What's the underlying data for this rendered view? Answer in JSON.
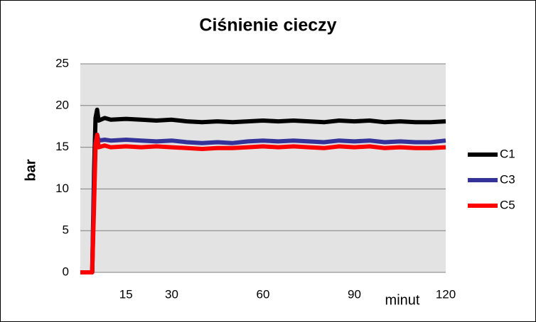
{
  "chart_data": {
    "type": "line",
    "title": "Ciśnienie cieczy",
    "y_label": "bar",
    "x_label": "minut",
    "x": [
      0,
      3.9,
      4.5,
      5,
      5.5,
      6,
      8,
      10,
      15,
      20,
      25,
      30,
      35,
      40,
      45,
      50,
      55,
      60,
      65,
      70,
      75,
      80,
      85,
      90,
      95,
      100,
      105,
      110,
      115,
      120
    ],
    "series": [
      {
        "name": "C1",
        "color": "#000000",
        "values": [
          0,
          0,
          12,
          18.5,
          19.5,
          18.2,
          18.5,
          18.3,
          18.4,
          18.3,
          18.2,
          18.3,
          18.1,
          18.0,
          18.1,
          18.0,
          18.1,
          18.2,
          18.1,
          18.2,
          18.1,
          18.0,
          18.2,
          18.1,
          18.2,
          18.0,
          18.1,
          18.0,
          18.0,
          18.1
        ]
      },
      {
        "name": "C3",
        "color": "#333399",
        "values": [
          0,
          0,
          10,
          15.5,
          16.5,
          15.8,
          15.9,
          15.8,
          15.9,
          15.8,
          15.7,
          15.8,
          15.6,
          15.5,
          15.6,
          15.5,
          15.7,
          15.8,
          15.7,
          15.8,
          15.7,
          15.6,
          15.8,
          15.7,
          15.8,
          15.6,
          15.7,
          15.6,
          15.6,
          15.8
        ]
      },
      {
        "name": "C5",
        "color": "#ff0000",
        "values": [
          0,
          0,
          8,
          15.2,
          16.5,
          15.0,
          15.2,
          15.0,
          15.1,
          15.0,
          15.1,
          15.0,
          14.9,
          14.8,
          14.9,
          14.9,
          15.0,
          15.1,
          15.0,
          15.1,
          15.0,
          14.9,
          15.1,
          15.0,
          15.1,
          14.9,
          15.0,
          14.9,
          14.9,
          15.0
        ]
      }
    ],
    "xlim": [
      0,
      120
    ],
    "xticks": [
      15,
      30,
      60,
      90,
      120
    ],
    "ylim": [
      0,
      25
    ],
    "yticks": [
      0,
      5,
      10,
      15,
      20,
      25
    ],
    "grid": true,
    "legend": "right"
  }
}
